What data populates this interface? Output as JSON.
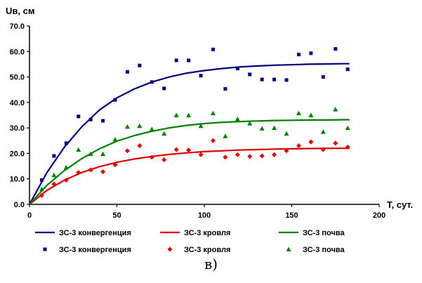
{
  "chart_data": {
    "type": "scatter",
    "ylabel": "Uв, см",
    "xlabel": "T, сут.",
    "xlim": [
      0,
      200
    ],
    "ylim": [
      0,
      70
    ],
    "x_ticks": [
      0,
      50,
      100,
      150,
      200
    ],
    "y_ticks": [
      0,
      10,
      20,
      30,
      40,
      50,
      60,
      70
    ],
    "x_tick_labels": [
      "0",
      "50",
      "100",
      "150",
      "200"
    ],
    "y_tick_labels": [
      "0.0",
      "10.0",
      "20.0",
      "30.0",
      "40.0",
      "50.0",
      "60.0",
      "70.0"
    ],
    "grid": false,
    "legend_position": "bottom",
    "series": [
      {
        "name": "ЗС-3 конвергенция",
        "kind": "line",
        "color": "#000080",
        "x": [
          0,
          10,
          20,
          30,
          40,
          50,
          60,
          70,
          80,
          90,
          100,
          110,
          120,
          130,
          140,
          150,
          160,
          170,
          180,
          183
        ],
        "values": [
          0,
          12.5,
          22.5,
          30.5,
          37,
          41.8,
          45.3,
          48,
          50,
          51.5,
          52.5,
          53.3,
          53.9,
          54.3,
          54.6,
          54.8,
          55,
          55.1,
          55.2,
          55.2
        ]
      },
      {
        "name": "ЗС-3 кровля",
        "kind": "line",
        "color": "#e00000",
        "x": [
          0,
          10,
          20,
          30,
          40,
          50,
          60,
          70,
          80,
          90,
          100,
          110,
          120,
          130,
          140,
          150,
          160,
          170,
          180,
          183
        ],
        "values": [
          0,
          5.5,
          9.5,
          12.5,
          14.8,
          16.5,
          17.8,
          18.8,
          19.6,
          20.2,
          20.7,
          21,
          21.3,
          21.5,
          21.7,
          21.8,
          21.9,
          22,
          22,
          22
        ]
      },
      {
        "name": "ЗС-3 почва",
        "kind": "line",
        "color": "#008000",
        "x": [
          0,
          10,
          20,
          30,
          40,
          50,
          60,
          70,
          80,
          90,
          100,
          110,
          120,
          130,
          140,
          150,
          160,
          170,
          180,
          183
        ],
        "values": [
          0,
          7.5,
          13.3,
          18,
          21.8,
          24.8,
          27,
          28.7,
          30,
          31,
          31.7,
          32.2,
          32.5,
          32.7,
          32.9,
          33,
          33.1,
          33.1,
          33.2,
          33.2
        ]
      },
      {
        "name": "ЗС-3 конвергенция",
        "kind": "points",
        "marker": "square",
        "color": "#000080",
        "x": [
          7,
          14,
          21,
          28,
          35,
          42,
          49,
          56,
          63,
          70,
          77,
          84,
          91,
          98,
          105,
          112,
          119,
          126,
          133,
          140,
          147,
          154,
          161,
          168,
          175,
          182
        ],
        "values": [
          9.5,
          19,
          24,
          34.5,
          33.3,
          32.8,
          41,
          52,
          54.5,
          48,
          45.5,
          56.5,
          56.5,
          50.5,
          60.8,
          45.3,
          53.3,
          51,
          49,
          49,
          48.8,
          58.8,
          59.3,
          50,
          61,
          53
        ]
      },
      {
        "name": "ЗС-3 кровля",
        "kind": "points",
        "marker": "diamond",
        "color": "#e00000",
        "x": [
          7,
          14,
          21,
          28,
          35,
          42,
          49,
          56,
          63,
          70,
          77,
          84,
          91,
          98,
          105,
          112,
          119,
          126,
          133,
          140,
          147,
          154,
          161,
          168,
          175,
          182
        ],
        "values": [
          3.5,
          8,
          9.5,
          12.5,
          13.5,
          12.8,
          15.5,
          21,
          23,
          18.5,
          17.5,
          21.5,
          21.3,
          19.5,
          25,
          18.5,
          19.5,
          18.8,
          19,
          19.5,
          21,
          23,
          24.5,
          21.5,
          24,
          22.5
        ]
      },
      {
        "name": "ЗС-3 почва",
        "kind": "points",
        "marker": "triangle",
        "color": "#008000",
        "x": [
          7,
          14,
          21,
          28,
          35,
          42,
          49,
          56,
          63,
          70,
          77,
          84,
          91,
          98,
          105,
          112,
          119,
          126,
          133,
          140,
          147,
          154,
          161,
          168,
          175,
          182
        ],
        "values": [
          6,
          11.5,
          14.5,
          21.5,
          19.8,
          19.8,
          25.5,
          30.5,
          30.8,
          29.5,
          27.8,
          35,
          35,
          30.8,
          35.8,
          26.8,
          33.5,
          31.8,
          29.8,
          30,
          27.8,
          35.8,
          35,
          28.5,
          37.3,
          30
        ]
      }
    ]
  },
  "caption": "в)"
}
